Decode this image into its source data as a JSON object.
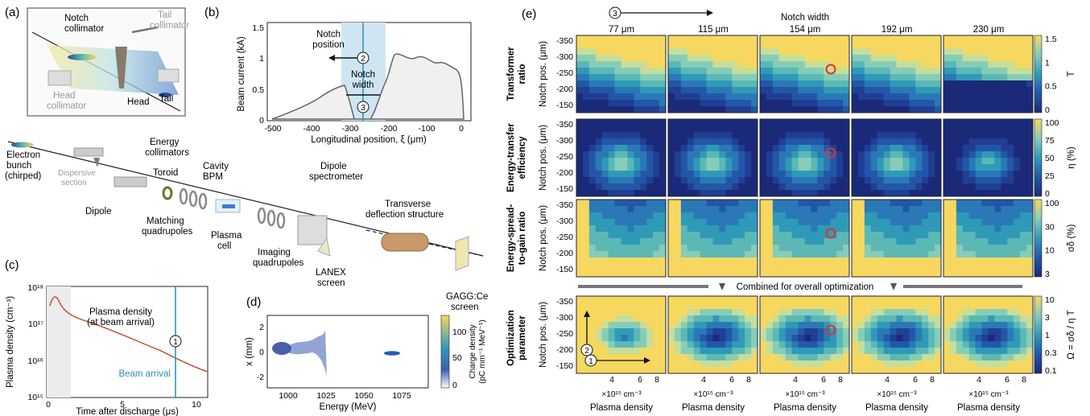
{
  "panels": {
    "a": {
      "label": "(a)",
      "notch_collimator": [
        "Notch",
        "collimator"
      ],
      "tail_collimator": [
        "Tail",
        "collimator"
      ],
      "head_collimator": [
        "Head",
        "collimator"
      ],
      "head": "Head",
      "tail": "Tail",
      "energy_collimators": [
        "Energy",
        "collimators"
      ],
      "electron_bunch": [
        "Electron",
        "bunch",
        "(chirped)"
      ],
      "dispersive_section": [
        "Dispersive",
        "section"
      ],
      "toroid": "Toroid",
      "cavity_bpm": [
        "Cavity",
        "BPM"
      ],
      "dipole": "Dipole",
      "matching_quadrupoles": [
        "Matching",
        "quadrupoles"
      ],
      "plasma_cell": [
        "Plasma",
        "cell"
      ],
      "dipole_spectrometer": [
        "Dipole",
        "spectrometer"
      ],
      "transverse_deflection": [
        "Transverse",
        "deflection structure"
      ],
      "imaging_quadrupoles": [
        "Imaging",
        "quadrupoles"
      ],
      "lanex_screen": [
        "LANEX",
        "screen"
      ],
      "gaggce_screen": [
        "GAGG:Ce",
        "screen"
      ]
    },
    "b": {
      "label": "(b)",
      "xlabel": "Longitudinal position, ξ (μm)",
      "ylabel": "Beam current (kA)",
      "xticks": [
        "-500",
        "-400",
        "-300",
        "-200",
        "-100",
        "0"
      ],
      "yticks": [
        "0",
        "0.5",
        "1",
        "1.5"
      ],
      "notch_position": [
        "Notch",
        "position"
      ],
      "notch_width": [
        "Notch",
        "width"
      ],
      "marker2": "2",
      "marker3": "3"
    },
    "c": {
      "label": "(c)",
      "xlabel": "Time after discharge (μs)",
      "ylabel": "Plasma density (cm⁻³)",
      "xticks": [
        "0",
        "5",
        "10"
      ],
      "yticks": [
        "10¹⁵",
        "10¹⁶",
        "10¹⁷",
        "10¹⁸"
      ],
      "annotation": [
        "Plasma density",
        "(at beam arrival)"
      ],
      "beam_arrival": "Beam arrival",
      "marker1": "1"
    },
    "d": {
      "label": "(d)",
      "xlabel": "Energy (MeV)",
      "ylabel": "x (mm)",
      "xticks": [
        "1000",
        "1025",
        "1050",
        "1075"
      ],
      "yticks": [
        "2",
        "0",
        "-2"
      ],
      "cbar_ticks": [
        "100",
        "50",
        "0"
      ],
      "cbar_label": [
        "Charge density",
        "(pC mm⁻¹ MeV⁻¹)"
      ]
    },
    "e": {
      "label": "(e)",
      "marker3": "3",
      "notch_width_title": "Notch width",
      "columns": [
        "77 μm",
        "115 μm",
        "154 μm",
        "192 μm",
        "230 μm"
      ],
      "ylabel": "Notch pos. (μm)",
      "yticks": [
        "-350",
        "-300",
        "-250",
        "-200",
        "-150"
      ],
      "xticks": [
        "4",
        "6",
        "8"
      ],
      "x_multiplier": "×10¹⁵ cm⁻³",
      "xlabel": "Plasma density",
      "combined": "Combined for overall optimization",
      "marker1": "1",
      "marker2": "2",
      "rows": [
        {
          "title": [
            "Transformer",
            "ratio"
          ],
          "cbar_ticks": [
            "1.5",
            "1",
            "0.5",
            "0"
          ],
          "cbar_label": "T"
        },
        {
          "title": [
            "Energy-transfer",
            "efficiency"
          ],
          "cbar_ticks": [
            "100",
            "75",
            "50",
            "25",
            "0"
          ],
          "cbar_label": "η (%)"
        },
        {
          "title": [
            "Energy-spread-",
            "to-gain ratio"
          ],
          "cbar_ticks": [
            "100",
            "30",
            "10",
            "3"
          ],
          "cbar_label": "σδ (%)"
        },
        {
          "title": [
            "Optimization",
            "parameter"
          ],
          "cbar_ticks": [
            "10",
            "3",
            "1",
            "0.3",
            "0.1"
          ],
          "cbar_label": "Ω = σδ / η T"
        }
      ]
    }
  },
  "colors": {
    "blue_line": "#2f8fb7",
    "notch_band": "#cfe6f2",
    "marker_red": "#e0312f",
    "arrival_line": "#1f8fc0"
  }
}
